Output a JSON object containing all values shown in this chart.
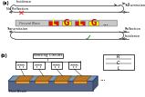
{
  "panel_a_label": "(a)",
  "panel_b_label": "(b)",
  "beam_color": "#c8c8c8",
  "block_colors": [
    "#dd1111",
    "#eeee00",
    "#dd1111",
    "#eeee00"
  ],
  "block_labels": [
    "L",
    "G",
    "L",
    "G"
  ],
  "block_text_colors": [
    "#ffff00",
    "#cc0000",
    "#ffff00",
    "#cc0000"
  ],
  "arrow_color": "#333333",
  "label_incidence_top": "Incidence",
  "label_no_reflection": "No Reflection",
  "label_transmission_top": "Transmission",
  "label_reflection": "Reflection",
  "label_transmission_bot": "Transmission",
  "label_incidence_bot": "Incidence",
  "x_label": "x",
  "flexural_wave_label": "Flexural Wave",
  "sensing_circuits_label": "Sensing Circuits",
  "host_beam_label": "Host Beam",
  "dots": "...",
  "beam_3d_top_color": "#7799bb",
  "beam_3d_front_color": "#556688",
  "beam_3d_side_color": "#445577",
  "piezo_color": "#bb7722",
  "background": "#ffffff"
}
